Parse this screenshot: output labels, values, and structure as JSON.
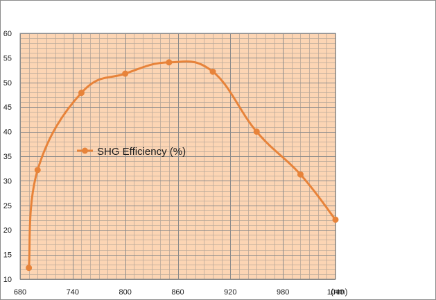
{
  "chart_data": {
    "type": "line",
    "title": "",
    "xlabel": "(nm)",
    "ylabel": "",
    "xlim": [
      680,
      1040
    ],
    "ylim": [
      10,
      60
    ],
    "x_ticks": [
      680,
      740,
      800,
      860,
      920,
      980,
      1040
    ],
    "y_ticks": [
      10,
      15,
      20,
      25,
      30,
      35,
      40,
      45,
      50,
      55,
      60
    ],
    "grid": true,
    "legend_position": "center-left",
    "colors": {
      "plot_background": "#fcd5b4",
      "grid_major": "#8a8a8a",
      "grid_minor": "#b9a89a",
      "series": "#e7833a"
    },
    "series": [
      {
        "name": "SHG Efficiency (%)",
        "x": [
          690,
          700,
          750,
          800,
          850,
          900,
          950,
          1000,
          1040
        ],
        "y": [
          12.3,
          32.2,
          47.9,
          51.8,
          54.1,
          52.2,
          40.0,
          31.3,
          22.1
        ]
      }
    ]
  }
}
